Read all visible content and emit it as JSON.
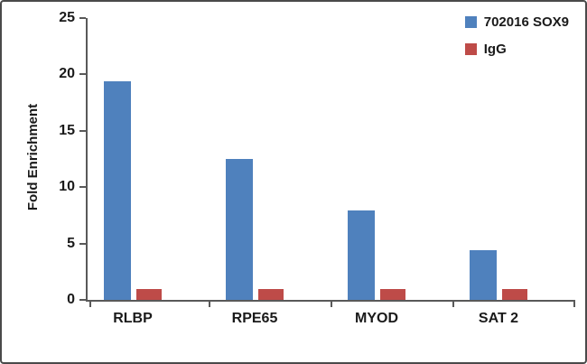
{
  "chart_data": {
    "type": "bar",
    "title": "",
    "categories": [
      "RLBP",
      "RPE65",
      "MYOD",
      "SAT 2"
    ],
    "series": [
      {
        "name": "702016 SOX9",
        "color": "#4F81BD",
        "values": [
          19.4,
          12.5,
          7.9,
          4.4
        ]
      },
      {
        "name": "IgG",
        "color": "#BE4B48",
        "values": [
          1.0,
          1.0,
          1.0,
          1.0
        ]
      }
    ],
    "xlabel": "",
    "ylabel": "Fold Enrichment",
    "ylim": [
      0,
      25
    ],
    "yticks": [
      0,
      5,
      10,
      15,
      20,
      25
    ],
    "grid": false,
    "legend_position": "top-right"
  },
  "colors": {
    "axis": "#595959",
    "text": "#1a1a1a",
    "frame_border": "#4a4a4a",
    "background": "#ffffff"
  }
}
